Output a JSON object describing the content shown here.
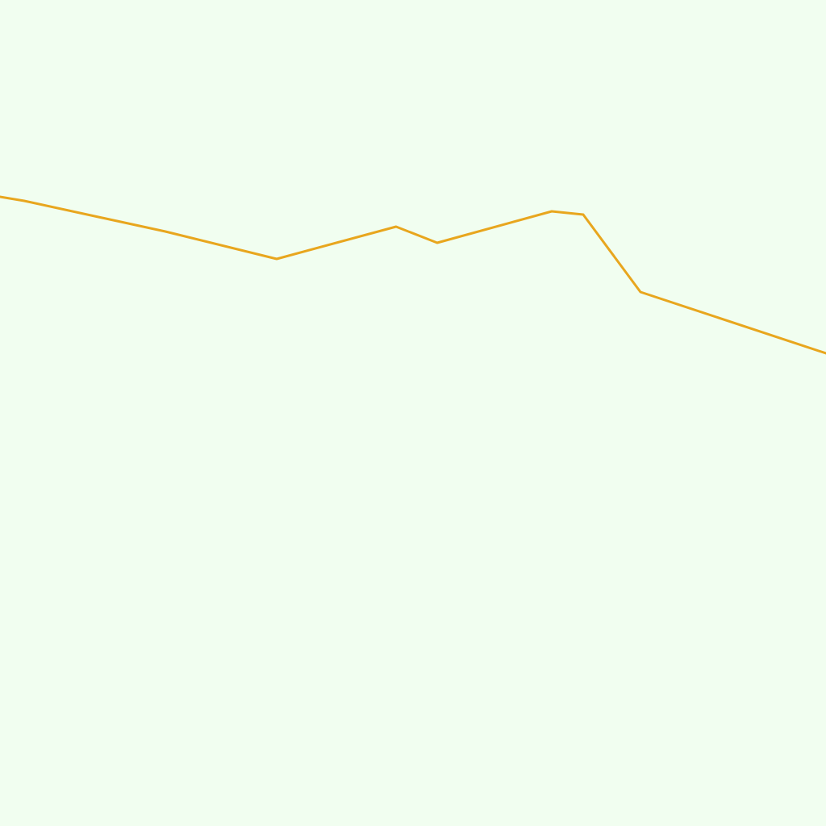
{
  "map": {
    "background_color": "#f1fef0",
    "features": [
      {
        "kind": "polyline",
        "color": "#e8a61e",
        "meaning": "route-or-boundary-line"
      }
    ]
  }
}
